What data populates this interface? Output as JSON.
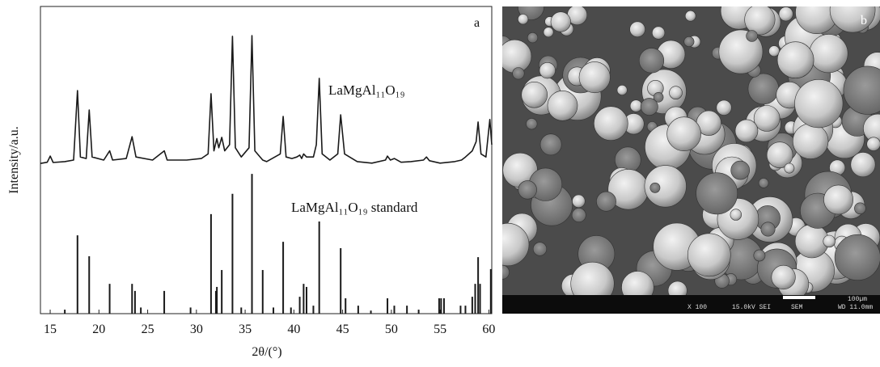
{
  "chart_data": {
    "type": "line",
    "annotations": [
      "a"
    ],
    "x_label": "2θ/(°)",
    "y_label": "Intensity/a.u.",
    "xlim": [
      14,
      60.3
    ],
    "ylim": [
      0,
      100
    ],
    "xticks": [
      15,
      20,
      25,
      30,
      35,
      40,
      45,
      50,
      55,
      60
    ],
    "series": [
      {
        "name": "LaMgAl₁₁O₁₉",
        "type": "line",
        "color": "#1a1a1a",
        "x": [
          14.0,
          14.7,
          15.0,
          15.3,
          16.5,
          17.4,
          17.8,
          18.1,
          18.7,
          19.0,
          19.3,
          20.5,
          21.1,
          21.4,
          22.8,
          23.4,
          23.8,
          25.5,
          26.7,
          27.0,
          29.0,
          30.5,
          31.2,
          31.5,
          31.8,
          32.1,
          32.3,
          32.6,
          32.9,
          33.4,
          33.7,
          34.0,
          34.6,
          35.4,
          35.7,
          36.0,
          36.8,
          37.2,
          38.6,
          38.9,
          39.2,
          39.8,
          40.3,
          40.6,
          40.8,
          41.0,
          41.3,
          42.0,
          42.3,
          42.6,
          42.9,
          43.7,
          44.5,
          44.8,
          45.2,
          46.5,
          48.0,
          49.4,
          49.6,
          49.9,
          50.3,
          51.0,
          52.0,
          53.3,
          53.6,
          53.9,
          55.0,
          56.5,
          57.2,
          57.6,
          58.3,
          58.7,
          58.9,
          59.2,
          59.7,
          60.1,
          60.3
        ],
        "values": [
          48.9,
          49.3,
          51.3,
          49.2,
          49.5,
          50,
          72.6,
          51,
          50.5,
          66.3,
          51,
          50,
          53,
          50,
          50.5,
          57.6,
          51,
          50,
          53,
          50,
          50,
          50.5,
          52,
          71.6,
          53,
          57,
          54,
          57.4,
          53,
          55,
          90.3,
          54,
          51,
          54,
          90.5,
          53,
          50,
          49.5,
          52,
          64.2,
          51,
          50.5,
          51,
          51.6,
          50.5,
          52,
          51,
          51,
          55,
          76.6,
          52,
          50,
          52,
          64.7,
          52,
          49.5,
          49,
          50,
          51.3,
          50,
          50.5,
          49.3,
          49.5,
          50,
          51,
          49.8,
          49,
          49.5,
          50,
          51,
          53,
          56,
          62.4,
          52,
          51,
          63.2,
          55
        ]
      },
      {
        "name": "LaMgAl₁₁O₁₉ standard",
        "type": "stick",
        "color": "#1a1a1a",
        "x": [
          16.5,
          17.8,
          19.0,
          21.1,
          23.4,
          23.7,
          24.3,
          26.7,
          29.4,
          31.5,
          32.0,
          32.1,
          32.6,
          33.7,
          34.6,
          35.7,
          36.8,
          37.9,
          38.9,
          39.7,
          40.6,
          41.0,
          41.3,
          42.0,
          42.6,
          44.8,
          45.3,
          46.6,
          47.9,
          49.6,
          50.3,
          51.6,
          52.8,
          54.9,
          55.1,
          55.4,
          57.1,
          57.6,
          58.3,
          58.6,
          58.9,
          59.1,
          60.2
        ],
        "values": [
          1.3,
          25.5,
          18.7,
          9.7,
          9.7,
          7.4,
          2,
          7.4,
          2,
          32.4,
          7.4,
          8.7,
          14.2,
          39,
          2,
          45.5,
          14.2,
          2,
          23.4,
          2,
          5.5,
          9.7,
          8.7,
          2.6,
          30,
          21.3,
          5,
          2.6,
          1,
          5,
          2.6,
          2.6,
          1.3,
          5,
          5,
          5,
          2.6,
          2.6,
          5.5,
          9.7,
          18.4,
          9.7,
          14.5
        ]
      }
    ]
  },
  "sem_image": {
    "label": "b",
    "info_bar": [
      "X 100",
      "15.0kV SEI",
      "SEM",
      "100µm",
      "WD 11.0mm"
    ]
  }
}
